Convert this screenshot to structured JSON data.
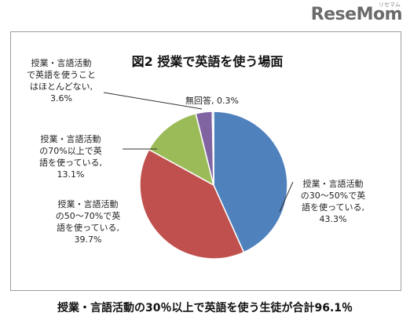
{
  "site": {
    "logo_text": "ReseMom",
    "logo_small": "リセマム"
  },
  "footer_caption": "授業・言語活動の30％以上で英語を使う生徒が合計96.1％",
  "chart_data": {
    "type": "pie",
    "title": "図2 授業で英語を使う場面",
    "start_angle_deg": 0,
    "direction": "clockwise",
    "slices": [
      {
        "label_lines": [
          "授業・言語活動",
          "の30～50%で英",
          "語を使っている,"
        ],
        "value_label": "43.3%",
        "value": 43.3,
        "color": "#4f81bd"
      },
      {
        "label_lines": [
          "授業・言語活動",
          "の50～70%で英",
          "語を使っている,"
        ],
        "value_label": "39.7%",
        "value": 39.7,
        "color": "#c0504d"
      },
      {
        "label_lines": [
          "授業・言語活動",
          "の70%以上で英",
          "語を使っている,"
        ],
        "value_label": "13.1%",
        "value": 13.1,
        "color": "#9bbb59"
      },
      {
        "label_lines": [
          "授業・言語活動",
          "で英語を使うこと",
          "はほとんどない,"
        ],
        "value_label": "3.6%",
        "value": 3.6,
        "color": "#8064a2"
      },
      {
        "label_lines": [
          "無回答,"
        ],
        "value_label": "0.3%",
        "value": 0.3,
        "color": "#4bacc6"
      }
    ]
  }
}
